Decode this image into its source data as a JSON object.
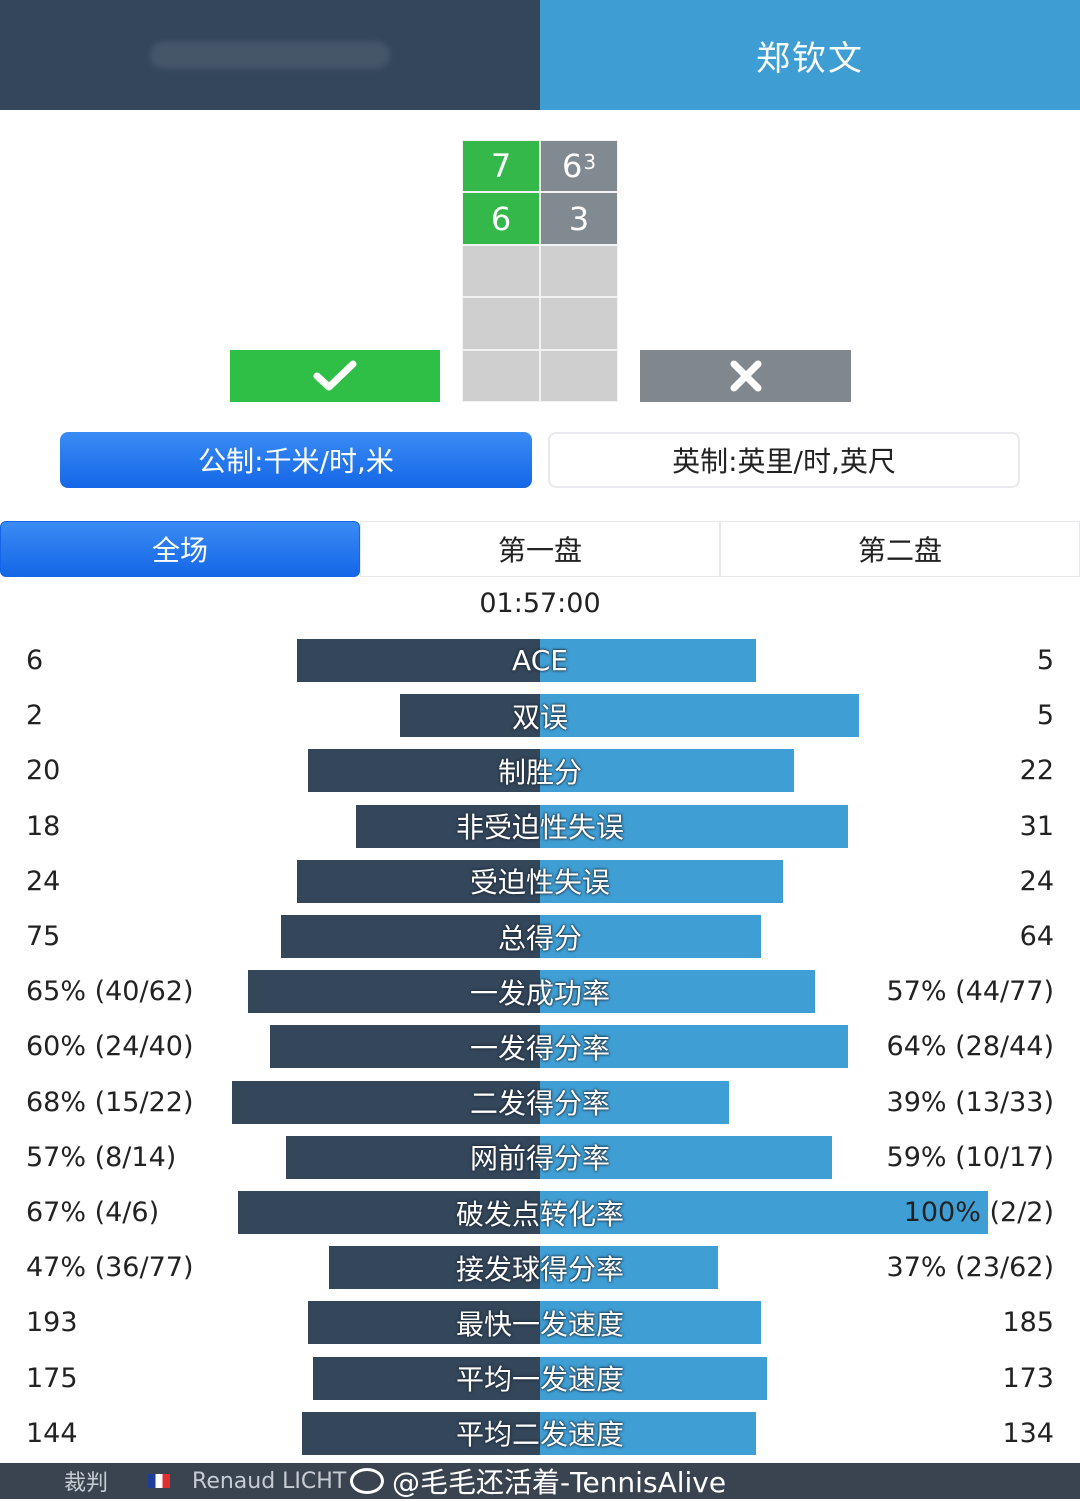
{
  "header": {
    "player_left": "",
    "player_right": "郑钦文"
  },
  "score": {
    "sets": [
      {
        "top": "7",
        "top_tiebreak": "",
        "bottom": "6"
      },
      {
        "top": "6",
        "top_tiebreak": "3",
        "bottom": "3"
      }
    ],
    "win_icon": "check-icon",
    "lose_icon": "close-icon"
  },
  "units": {
    "metric": "公制:千米/时,米",
    "imperial": "英制:英里/时,英尺",
    "selected": "metric"
  },
  "tabs": [
    "全场",
    "第一盘",
    "第二盘"
  ],
  "duration": "01:57:00",
  "colors": {
    "left_bar": "#34465a",
    "right_bar": "#3f9fd5",
    "accent": "#1566e6",
    "win": "#2fbf47"
  },
  "stats": [
    {
      "label": "ACE",
      "left": "6",
      "right": "5",
      "left_share": 0.45,
      "right_share": 0.4
    },
    {
      "label": "双误",
      "left": "2",
      "right": "5",
      "left_share": 0.26,
      "right_share": 0.59
    },
    {
      "label": "制胜分",
      "left": "20",
      "right": "22",
      "left_share": 0.43,
      "right_share": 0.47
    },
    {
      "label": "非受迫性失误",
      "left": "18",
      "right": "31",
      "left_share": 0.34,
      "right_share": 0.57
    },
    {
      "label": "受迫性失误",
      "left": "24",
      "right": "24",
      "left_share": 0.45,
      "right_share": 0.45
    },
    {
      "label": "总得分",
      "left": "75",
      "right": "64",
      "left_share": 0.48,
      "right_share": 0.41
    },
    {
      "label": "一发成功率",
      "left": "65% (40/62)",
      "right": "57% (44/77)",
      "left_share": 0.54,
      "right_share": 0.51
    },
    {
      "label": "一发得分率",
      "left": "60% (24/40)",
      "right": "64% (28/44)",
      "left_share": 0.5,
      "right_share": 0.57
    },
    {
      "label": "二发得分率",
      "left": "68% (15/22)",
      "right": "39% (13/33)",
      "left_share": 0.57,
      "right_share": 0.35
    },
    {
      "label": "网前得分率",
      "left": "57% (8/14)",
      "right": "59% (10/17)",
      "left_share": 0.47,
      "right_share": 0.54
    },
    {
      "label": "破发点转化率",
      "left": "67% (4/6)",
      "right": "100% (2/2)",
      "left_share": 0.56,
      "right_share": 0.83
    },
    {
      "label": "接发球得分率",
      "left": "47% (36/77)",
      "right": "37% (23/62)",
      "left_share": 0.39,
      "right_share": 0.33
    },
    {
      "label": "最快一发速度",
      "left": "193",
      "right": "185",
      "left_share": 0.43,
      "right_share": 0.41
    },
    {
      "label": "平均一发速度",
      "left": "175",
      "right": "173",
      "left_share": 0.42,
      "right_share": 0.42
    },
    {
      "label": "平均二发速度",
      "left": "144",
      "right": "134",
      "left_share": 0.44,
      "right_share": 0.4
    }
  ],
  "footer": {
    "umpire_label": "裁判",
    "umpire_name": "Renaud LICHT",
    "watermark": "@毛毛还活着-TennisAlive",
    "weibo_icon": "weibo-icon"
  }
}
